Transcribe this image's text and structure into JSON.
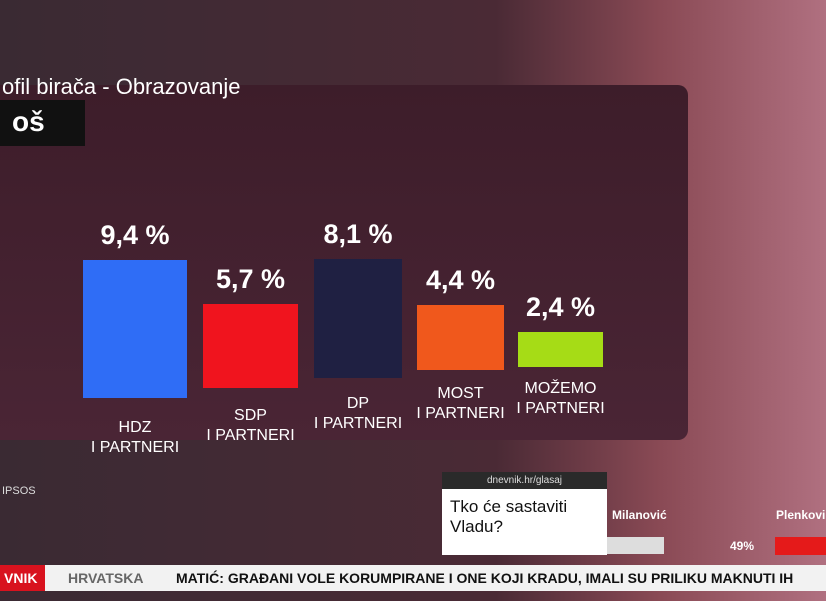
{
  "chart_data": {
    "type": "bar",
    "title": "ofil birača - Obrazovanje",
    "subtitle": "oš",
    "categories": [
      "HDZ\nI PARTNERI",
      "SDP\nI PARTNERI",
      "DP\nI PARTNERI",
      "MOST\nI PARTNERI",
      "MOŽEMO\nI PARTNERI"
    ],
    "values": [
      9.4,
      5.7,
      8.1,
      4.4,
      2.4
    ],
    "value_labels": [
      "9,4 %",
      "5,7 %",
      "8,1 %",
      "4,4 %",
      "2,4 %"
    ],
    "colors": [
      "#2f6df6",
      "#f0141e",
      "#1f2042",
      "#f0581c",
      "#a6dc16"
    ],
    "source": "IPSOS"
  },
  "poll": {
    "url": "dnevnik.hr/glasaj",
    "question": "Tko će sastaviti\nVladu?",
    "candidates": [
      "Milanović",
      "Plenkovi"
    ],
    "value": 49,
    "value_label": "49%"
  },
  "ticker": {
    "channel": "VNIK",
    "section": "HRVATSKA",
    "headline": "MATIĆ: GRAĐANI VOLE KORUMPIRANE I ONE KOJI KRADU, IMALI SU PRILIKU MAKNUTI IH"
  }
}
